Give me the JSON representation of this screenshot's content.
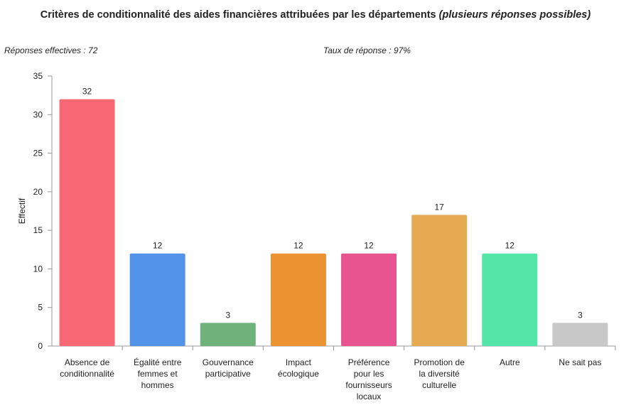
{
  "chart_data": {
    "type": "bar",
    "title": "Critères de conditionnalité des aides financières attribuées par les départements",
    "title_suffix": "(plusieurs réponses possibles)",
    "annotations": [
      "Réponses effectives : 72",
      "Taux de réponse : 97%"
    ],
    "y_label": "Effectif",
    "categories": [
      "Absence de conditionnalité",
      "Égalité entre femmes et hommes",
      "Gouvernance participative",
      "Impact écologique",
      "Préférence pour les fournisseurs locaux",
      "Promotion de la diversité culturelle",
      "Autre",
      "Ne sait pas"
    ],
    "values": [
      32,
      12,
      3,
      12,
      12,
      17,
      12,
      3
    ],
    "colors": [
      "#f86874",
      "#5292e8",
      "#6fb27a",
      "#ec9431",
      "#e8548f",
      "#e6ab52",
      "#54e6a8",
      "#c8c8c8"
    ],
    "ylim": [
      0,
      35
    ],
    "yticks": [
      0,
      5,
      10,
      15,
      20,
      25,
      30,
      35
    ],
    "grid": false
  }
}
